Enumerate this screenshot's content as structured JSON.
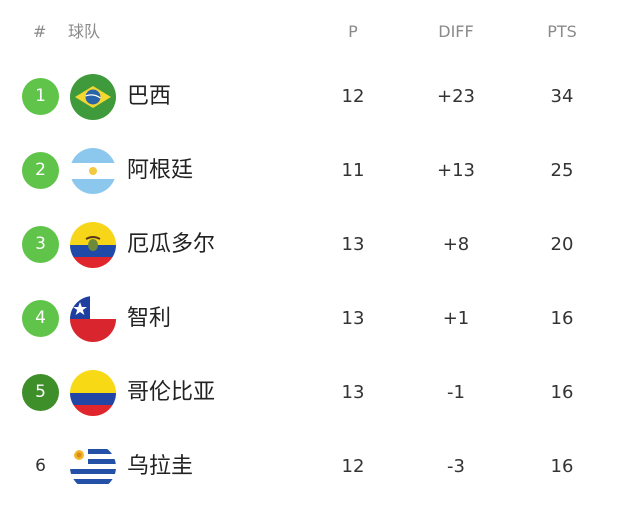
{
  "header": {
    "rank": "#",
    "team": "球队",
    "played": "P",
    "diff": "DIFF",
    "points": "PTS"
  },
  "colors": {
    "qualified": "#5fc449",
    "playoff": "#3e8e2a"
  },
  "rows": [
    {
      "rank": "1",
      "team": "巴西",
      "flag": "brazil-flag-icon",
      "played": "12",
      "diff": "+23",
      "points": "34",
      "badge": "#5fc449"
    },
    {
      "rank": "2",
      "team": "阿根廷",
      "flag": "argentina-flag-icon",
      "played": "11",
      "diff": "+13",
      "points": "25",
      "badge": "#5fc449"
    },
    {
      "rank": "3",
      "team": "厄瓜多尔",
      "flag": "ecuador-flag-icon",
      "played": "13",
      "diff": "+8",
      "points": "20",
      "badge": "#5fc449"
    },
    {
      "rank": "4",
      "team": "智利",
      "flag": "chile-flag-icon",
      "played": "13",
      "diff": "+1",
      "points": "16",
      "badge": "#5fc449"
    },
    {
      "rank": "5",
      "team": "哥伦比亚",
      "flag": "colombia-flag-icon",
      "played": "13",
      "diff": "-1",
      "points": "16",
      "badge": "#3e8e2a"
    },
    {
      "rank": "6",
      "team": "乌拉圭",
      "flag": "uruguay-flag-icon",
      "played": "12",
      "diff": "-3",
      "points": "16",
      "badge": ""
    }
  ]
}
